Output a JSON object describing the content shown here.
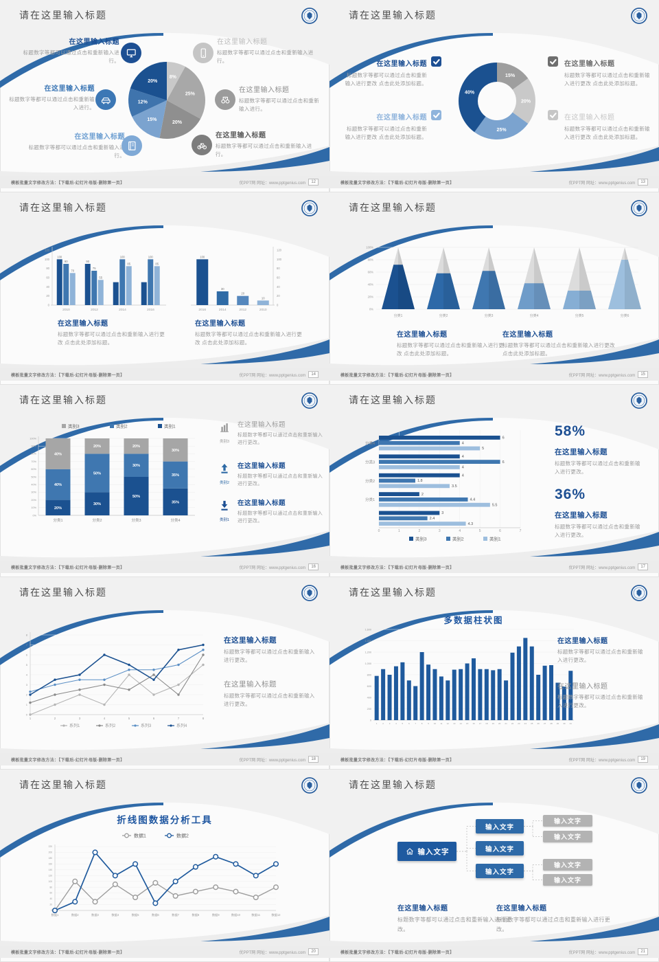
{
  "page": {
    "slide_title": "请在这里输入标题",
    "footer_left": "模板批量文字修改方法：【下载后-幻灯片母版-删除第一页】",
    "footer_right": "优PPT网  网址：www.pptgenius.com",
    "accent": "#2f6aa8",
    "heading_blue": "#1d4f93",
    "body_gray": "#9b9b9b"
  },
  "strings": {
    "block_heading": "在这里输入标题",
    "body_short": "标题数字等都可以通过点击和重新输入进行。",
    "body_add": "标题数字等都可以通过点击和重新输入进行更改 点击此处添加标题。",
    "body_change": "标题数字等都可以通过点击和重新输入进行更改。",
    "box_label": "输入文字"
  },
  "slides": [
    {
      "page": "12",
      "type": "pie-features",
      "left": [
        {
          "icon": "monitor-icon",
          "color": "#1d4f93",
          "hcolor": "#1d4f93",
          "bold": true
        },
        {
          "icon": "car-icon",
          "color": "#3c77b5",
          "hcolor": "#3c77b5",
          "bold": true
        },
        {
          "icon": "book-icon",
          "color": "#7fa9d6",
          "hcolor": "#6fa0d2",
          "bold": true
        }
      ],
      "right": [
        {
          "icon": "phone-icon",
          "color": "#c5c5c5",
          "hcolor": "#bdbdbd",
          "bold": false
        },
        {
          "icon": "binoculars-icon",
          "color": "#9b9b9b",
          "hcolor": "#8f8f8f",
          "bold": false
        },
        {
          "icon": "bicycle-icon",
          "color": "#7d7d7d",
          "hcolor": "#5a5a5a",
          "bold": true
        }
      ]
    },
    {
      "page": "13",
      "type": "donut-checklist",
      "items": [
        {
          "color": "#1d4f93",
          "bold": true
        },
        {
          "color": "#8fb4dc",
          "bold": true
        },
        {
          "color": "#6e6e6e",
          "bold": true
        },
        {
          "color": "#c6c6c6",
          "bold": false
        }
      ]
    },
    {
      "page": "14",
      "type": "two-bar-charts"
    },
    {
      "page": "15",
      "type": "pyramid-chart"
    },
    {
      "page": "16",
      "type": "stacked-chart",
      "side_items": [
        {
          "icon": "bar-chart-icon",
          "caption": "类别3",
          "color": "#9a9a9a",
          "hcolor": "#9a9a9a",
          "bold": false
        },
        {
          "icon": "arrow-up-icon",
          "caption": "类别2",
          "color": "#2f6ba6",
          "hcolor": "#1d4f93",
          "bold": true
        },
        {
          "icon": "arrow-down-icon",
          "caption": "类别1",
          "color": "#1d4f93",
          "hcolor": "#1d4f93",
          "bold": true
        }
      ]
    },
    {
      "page": "17",
      "type": "hbar-chart",
      "stats": [
        "58%",
        "36%"
      ]
    },
    {
      "page": "18",
      "type": "line-chart-4"
    },
    {
      "page": "19",
      "type": "column-chart-31"
    },
    {
      "page": "20",
      "type": "line-chart-2"
    },
    {
      "page": "21",
      "type": "diagram",
      "diagram": {
        "root": "输入文字",
        "mid": [
          "输入文字",
          "输入文字",
          "输入文字"
        ],
        "leaves": [
          "输入文字",
          "输入文字",
          "输入文字",
          "输入文字"
        ]
      }
    }
  ],
  "chart_data": [
    {
      "slide": 1,
      "type": "pie",
      "start": "top",
      "direction": "clockwise",
      "values": [
        8,
        25,
        20,
        15,
        12,
        20
      ],
      "labels": [
        "8%",
        "25%",
        "20%",
        "15%",
        "12%",
        "20%"
      ],
      "colors": [
        "#c9c9c9",
        "#a8a8a8",
        "#8f8f8f",
        "#7ba3cf",
        "#3f74ad",
        "#1b5190"
      ]
    },
    {
      "slide": 2,
      "type": "donut",
      "start": "top",
      "direction": "clockwise",
      "values": [
        15,
        20,
        25,
        40
      ],
      "labels": [
        "15%",
        "20%",
        "25%",
        "40%"
      ],
      "colors": [
        "#9e9e9e",
        "#c9c9c9",
        "#7ba3cf",
        "#1b5190"
      ]
    },
    {
      "slide": 3,
      "type": "bar",
      "panels": [
        {
          "kind": "grouped",
          "categories": [
            "2010",
            "2012",
            "2014",
            "2016"
          ],
          "series": [
            {
              "color": "#1b5190",
              "values": [
                100,
                90,
                50,
                50
              ],
              "labels": [
                "100",
                "90",
                "",
                ""
              ]
            },
            {
              "color": "#3f77b0",
              "values": [
                90,
                75,
                100,
                100
              ],
              "labels": [
                "90",
                "75",
                "100",
                "100"
              ]
            },
            {
              "color": "#8fb3d8",
              "values": [
                70,
                55,
                85,
                85
              ],
              "labels": [
                "70",
                "55",
                "85",
                "85"
              ]
            }
          ],
          "ylim": [
            0,
            120
          ],
          "ystep": 20,
          "axis": "left"
        },
        {
          "kind": "single",
          "categories": [
            "2016",
            "2014",
            "2012",
            "2010"
          ],
          "values": [
            100,
            30,
            20,
            10
          ],
          "labels": [
            "100",
            "30",
            "20",
            "10"
          ],
          "colors": [
            "#1b5190",
            "#2f6ba6",
            "#5587bd",
            "#8fb3d8"
          ],
          "ylim": [
            0,
            120
          ],
          "ystep": 20,
          "axis": "right"
        }
      ]
    },
    {
      "slide": 4,
      "type": "pyramid",
      "categories": [
        "分类1",
        "分类2",
        "分类3",
        "分类4",
        "分类5",
        "分类6"
      ],
      "fill_percent": [
        72,
        58,
        62,
        42,
        30,
        80
      ],
      "colors": [
        "#1b5190",
        "#2d69a8",
        "#3f77b0",
        "#6f9cc9",
        "#86aed4",
        "#9dbfde"
      ],
      "top_color": "#dcdcdc",
      "ylim": [
        0,
        100
      ],
      "ystep": 20,
      "yticks": [
        "0%",
        "20%",
        "40%",
        "60%",
        "80%",
        "100%"
      ]
    },
    {
      "slide": 5,
      "type": "stacked-bar-100",
      "categories": [
        "分类1",
        "分类2",
        "分类3",
        "分类4"
      ],
      "series": [
        {
          "name": "类别1",
          "color": "#1b5190",
          "values": [
            20,
            30,
            50,
            35
          ]
        },
        {
          "name": "类别2",
          "color": "#3f77b0",
          "values": [
            40,
            50,
            30,
            35
          ]
        },
        {
          "name": "类别3",
          "color": "#a6a6a6",
          "values": [
            40,
            20,
            20,
            30
          ]
        }
      ],
      "legend_order": [
        "类别3",
        "类别2",
        "类别1"
      ],
      "ylim": [
        0,
        100
      ],
      "ystep": 10
    },
    {
      "slide": 6,
      "type": "hbar",
      "groups": [
        "分类4",
        "分类3",
        "分类2",
        "分类1",
        ""
      ],
      "series": [
        {
          "name": "类别3",
          "color": "#1b5190",
          "values": [
            6,
            4,
            4,
            2,
            3
          ]
        },
        {
          "name": "类别2",
          "color": "#3f77b0",
          "values": [
            4,
            6,
            1.8,
            4.4,
            2.4
          ]
        },
        {
          "name": "类别1",
          "color": "#9dbede",
          "values": [
            5,
            4,
            3.5,
            5.5,
            4.3
          ]
        }
      ],
      "xlim": [
        0,
        7
      ],
      "xstep": 1
    },
    {
      "slide": 7,
      "type": "line",
      "x": [
        1,
        2,
        3,
        4,
        5,
        6,
        7,
        8
      ],
      "series": [
        {
          "name": "系列1",
          "color": "#b5b5b5",
          "values": [
            0,
            1,
            2,
            1,
            4,
            2,
            3,
            5
          ]
        },
        {
          "name": "系列2",
          "color": "#8a8a8a",
          "values": [
            1.2,
            2,
            2.5,
            3,
            2.5,
            4,
            2,
            6
          ]
        },
        {
          "name": "系列3",
          "color": "#5b8fc5",
          "values": [
            2.3,
            3,
            3.5,
            3.5,
            4.5,
            4.5,
            5,
            6.5
          ]
        },
        {
          "name": "系列4",
          "color": "#1b5190",
          "values": [
            2,
            3.5,
            4,
            6,
            5,
            3.5,
            6.5,
            7
          ]
        }
      ],
      "ylim": [
        0,
        8
      ],
      "ystep": 1
    },
    {
      "slide": 8,
      "type": "bar",
      "title": "多数据柱状图",
      "categories": [
        "1",
        "2",
        "3",
        "4",
        "5",
        "6",
        "7",
        "8",
        "9",
        "10",
        "11",
        "12",
        "13",
        "14",
        "15",
        "16",
        "17",
        "18",
        "19",
        "20",
        "21",
        "22",
        "23",
        "24",
        "25",
        "26",
        "27",
        "28",
        "29",
        "30",
        "31"
      ],
      "values": [
        780,
        900,
        800,
        950,
        1020,
        700,
        600,
        1200,
        980,
        900,
        770,
        700,
        890,
        900,
        1000,
        1090,
        900,
        900,
        880,
        900,
        700,
        1190,
        1300,
        1450,
        1300,
        800,
        960,
        970,
        660,
        590,
        870
      ],
      "color": "#1f5a9d",
      "ylim": [
        0,
        1600
      ],
      "ystep": 200
    },
    {
      "slide": 9,
      "type": "line",
      "title": "折线图数据分析工具",
      "categories": [
        "数据1",
        "数据2",
        "数据3",
        "数据4",
        "数据5",
        "数据6",
        "数据7",
        "数据8",
        "数据9",
        "数据10",
        "数据11",
        "数据12"
      ],
      "series": [
        {
          "name": "数据1",
          "color": "#9e9e9e",
          "values": [
            0,
            100,
            30,
            90,
            45,
            95,
            50,
            65,
            80,
            65,
            45,
            80
          ]
        },
        {
          "name": "数据2",
          "color": "#1f5a9d",
          "values": [
            0,
            30,
            200,
            120,
            160,
            25,
            100,
            150,
            185,
            160,
            120,
            160
          ]
        }
      ],
      "ylim": [
        0,
        220
      ],
      "ystep": 20
    }
  ]
}
